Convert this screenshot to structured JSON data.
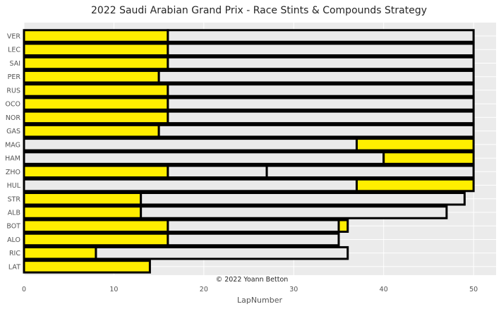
{
  "chart_data": {
    "type": "bar",
    "orientation": "horizontal",
    "stacked": true,
    "title": "2022 Saudi Arabian Grand Prix - Race Stints & Compounds Strategy",
    "xlabel": "LapNumber",
    "ylabel": "",
    "xlim": [
      0,
      52.5
    ],
    "xticks": [
      0,
      10,
      20,
      30,
      40,
      50
    ],
    "grid": true,
    "annotation": "© 2022 Yoann Betton",
    "compound_colors": {
      "MEDIUM": "#ffee00",
      "HARD": "#eaeaea"
    },
    "drivers": [
      {
        "driver": "VER",
        "stints": [
          {
            "compound": "MEDIUM",
            "laps": 16
          },
          {
            "compound": "HARD",
            "laps": 34
          }
        ]
      },
      {
        "driver": "LEC",
        "stints": [
          {
            "compound": "MEDIUM",
            "laps": 16
          },
          {
            "compound": "HARD",
            "laps": 34
          }
        ]
      },
      {
        "driver": "SAI",
        "stints": [
          {
            "compound": "MEDIUM",
            "laps": 16
          },
          {
            "compound": "HARD",
            "laps": 34
          }
        ]
      },
      {
        "driver": "PER",
        "stints": [
          {
            "compound": "MEDIUM",
            "laps": 15
          },
          {
            "compound": "HARD",
            "laps": 35
          }
        ]
      },
      {
        "driver": "RUS",
        "stints": [
          {
            "compound": "MEDIUM",
            "laps": 16
          },
          {
            "compound": "HARD",
            "laps": 34
          }
        ]
      },
      {
        "driver": "OCO",
        "stints": [
          {
            "compound": "MEDIUM",
            "laps": 16
          },
          {
            "compound": "HARD",
            "laps": 34
          }
        ]
      },
      {
        "driver": "NOR",
        "stints": [
          {
            "compound": "MEDIUM",
            "laps": 16
          },
          {
            "compound": "HARD",
            "laps": 34
          }
        ]
      },
      {
        "driver": "GAS",
        "stints": [
          {
            "compound": "MEDIUM",
            "laps": 15
          },
          {
            "compound": "HARD",
            "laps": 35
          }
        ]
      },
      {
        "driver": "MAG",
        "stints": [
          {
            "compound": "HARD",
            "laps": 37
          },
          {
            "compound": "MEDIUM",
            "laps": 13
          }
        ]
      },
      {
        "driver": "HAM",
        "stints": [
          {
            "compound": "HARD",
            "laps": 40
          },
          {
            "compound": "MEDIUM",
            "laps": 10
          }
        ]
      },
      {
        "driver": "ZHO",
        "stints": [
          {
            "compound": "MEDIUM",
            "laps": 16
          },
          {
            "compound": "HARD",
            "laps": 11
          },
          {
            "compound": "HARD",
            "laps": 23
          }
        ]
      },
      {
        "driver": "HUL",
        "stints": [
          {
            "compound": "HARD",
            "laps": 37
          },
          {
            "compound": "MEDIUM",
            "laps": 13
          }
        ]
      },
      {
        "driver": "STR",
        "stints": [
          {
            "compound": "MEDIUM",
            "laps": 13
          },
          {
            "compound": "HARD",
            "laps": 36
          }
        ]
      },
      {
        "driver": "ALB",
        "stints": [
          {
            "compound": "MEDIUM",
            "laps": 13
          },
          {
            "compound": "HARD",
            "laps": 34
          }
        ]
      },
      {
        "driver": "BOT",
        "stints": [
          {
            "compound": "MEDIUM",
            "laps": 16
          },
          {
            "compound": "HARD",
            "laps": 19
          },
          {
            "compound": "MEDIUM",
            "laps": 1
          }
        ]
      },
      {
        "driver": "ALO",
        "stints": [
          {
            "compound": "MEDIUM",
            "laps": 16
          },
          {
            "compound": "HARD",
            "laps": 19
          }
        ]
      },
      {
        "driver": "RIC",
        "stints": [
          {
            "compound": "MEDIUM",
            "laps": 8
          },
          {
            "compound": "HARD",
            "laps": 28
          }
        ]
      },
      {
        "driver": "LAT",
        "stints": [
          {
            "compound": "MEDIUM",
            "laps": 14
          }
        ]
      }
    ]
  }
}
